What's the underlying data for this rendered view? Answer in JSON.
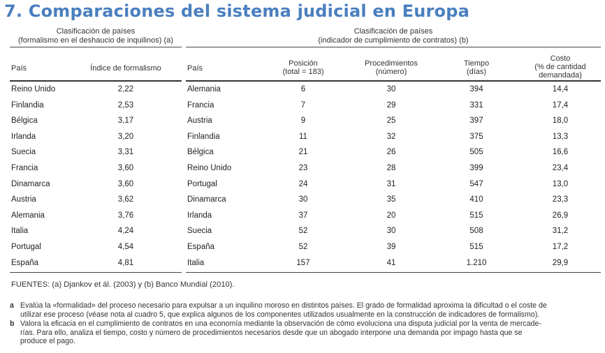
{
  "title": "7. Comparaciones del sistema judicial en Europa",
  "left_group": {
    "line1": "Clasificación de países",
    "line2": "(formalismo en el deshaucio de inquilinos) (a)",
    "headers": {
      "country": "País",
      "index": "Índice de formalismo"
    },
    "rows": [
      {
        "country": "Reino Unido",
        "index": "2,22"
      },
      {
        "country": "Finlandia",
        "index": "2,53"
      },
      {
        "country": "Bélgica",
        "index": "3,17"
      },
      {
        "country": "Irlanda",
        "index": "3,20"
      },
      {
        "country": "Suecia",
        "index": "3,31"
      },
      {
        "country": "Francia",
        "index": "3,60"
      },
      {
        "country": "Dinamarca",
        "index": "3,60"
      },
      {
        "country": "Austria",
        "index": "3,62"
      },
      {
        "country": "Alemania",
        "index": "3,76"
      },
      {
        "country": "Italia",
        "index": "4,24"
      },
      {
        "country": "Portugal",
        "index": "4,54"
      },
      {
        "country": "España",
        "index": "4,81"
      }
    ]
  },
  "right_group": {
    "line1": "Clasificación de países",
    "line2": "(indicador de cumplimiento de contratos) (b)",
    "headers": {
      "country": "País",
      "position": [
        "Posición",
        "(total = 183)"
      ],
      "procedures": [
        "Procedimientos",
        "(número)"
      ],
      "time": [
        "Tiempo",
        "(días)"
      ],
      "cost": [
        "Costo",
        "(% de cantidad",
        "demandada)"
      ]
    },
    "rows": [
      {
        "country": "Alemania",
        "position": "6",
        "procedures": "30",
        "time": "394",
        "cost": "14,4"
      },
      {
        "country": "Francia",
        "position": "7",
        "procedures": "29",
        "time": "331",
        "cost": "17,4"
      },
      {
        "country": "Austria",
        "position": "9",
        "procedures": "25",
        "time": "397",
        "cost": "18,0"
      },
      {
        "country": "Finlandia",
        "position": "11",
        "procedures": "32",
        "time": "375",
        "cost": "13,3"
      },
      {
        "country": "Bélgica",
        "position": "21",
        "procedures": "26",
        "time": "505",
        "cost": "16,6"
      },
      {
        "country": "Reino Unido",
        "position": "23",
        "procedures": "28",
        "time": "399",
        "cost": "23,4"
      },
      {
        "country": "Portugal",
        "position": "24",
        "procedures": "31",
        "time": "547",
        "cost": "13,0"
      },
      {
        "country": "Dinamarca",
        "position": "30",
        "procedures": "35",
        "time": "410",
        "cost": "23,3"
      },
      {
        "country": "Irlanda",
        "position": "37",
        "procedures": "20",
        "time": "515",
        "cost": "26,9"
      },
      {
        "country": "Suecia",
        "position": "52",
        "procedures": "30",
        "time": "508",
        "cost": "31,2"
      },
      {
        "country": "España",
        "position": "52",
        "procedures": "39",
        "time": "515",
        "cost": "17,2"
      },
      {
        "country": "Italia",
        "position": "157",
        "procedures": "41",
        "time": "1.210",
        "cost": "29,9"
      }
    ]
  },
  "sources": "FUENTES: (a) Djankov et ál. (2003) y (b) Banco Mundial (2010).",
  "notes": [
    {
      "key": "a",
      "lines": [
        "Evalúa la «formalidad» del proceso necesario para expulsar a un inquilino moroso en distintos países. El grado de formalidad aproxima la dificultad o el coste de",
        "utilizar ese proceso (véase nota al cuadro 5, que explica algunos de los componentes utilizados usualmente en la construcción de indicadores de formalismo)."
      ]
    },
    {
      "key": "b",
      "lines": [
        "Valora la eficacia en el cumplimiento de contratos en una economía mediante la observación de cómo evoluciona una disputa judicial por la venta de mercade-",
        "rías. Para ello, analiza el tiempo, costo y número de procedimientos necesarios desde que un abogado interpone una demanda por impago hasta que se",
        "produce el pago."
      ]
    }
  ],
  "colors": {
    "title": "#4a7fbf",
    "rule": "#444444"
  }
}
